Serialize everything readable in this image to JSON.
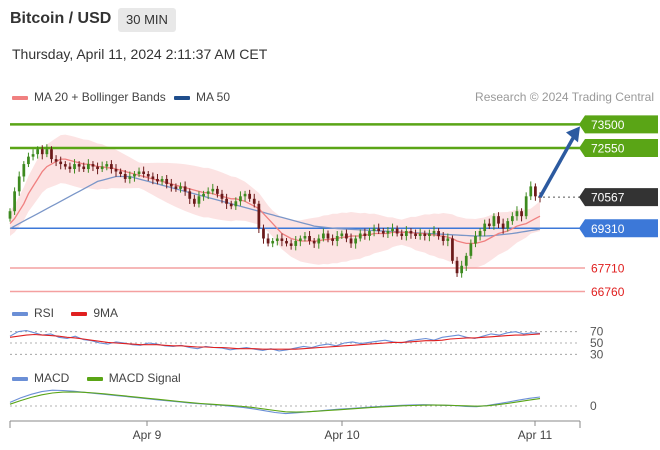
{
  "header": {
    "title": "Bitcoin / USD",
    "timeframe": "30 MIN"
  },
  "datetime": "Thursday, April 11, 2024 2:11:37 AM CET",
  "legend": {
    "ma_bb": "MA 20 + Bollinger Bands",
    "ma50": "MA 50",
    "research": "Research © 2024 Trading Central",
    "colors": {
      "ma20": "#f08080",
      "bollinger_fill": "#fbd9d9",
      "ma50": "#1f4e8c",
      "resistance": "#5aa516",
      "support": "#f4a0a0",
      "pivot": "#3c78d8",
      "current": "#333333"
    }
  },
  "rsi_panel": {
    "rsi_label": "RSI",
    "ma_label": "9MA",
    "levels": [
      "70",
      "50",
      "30"
    ],
    "colors": {
      "rsi": "#6b8fd6",
      "ma": "#e02020"
    }
  },
  "macd_panel": {
    "macd_label": "MACD",
    "signal_label": "MACD Signal",
    "zero": "0",
    "colors": {
      "macd": "#6b8fd6",
      "signal": "#5aa516"
    }
  },
  "chart_data": [
    {
      "type": "candlestick",
      "title": "Bitcoin / USD",
      "x_ticks": [
        "Apr 9",
        "Apr 10",
        "Apr 11"
      ],
      "ylim": [
        66500,
        74000
      ],
      "levels": [
        {
          "label": "73500",
          "value": 73500,
          "kind": "resistance"
        },
        {
          "label": "72550",
          "value": 72550,
          "kind": "resistance"
        },
        {
          "label": "70567",
          "value": 70567,
          "kind": "current"
        },
        {
          "label": "69310",
          "value": 69310,
          "kind": "pivot"
        },
        {
          "label": "67710",
          "value": 67710,
          "kind": "support"
        },
        {
          "label": "66760",
          "value": 66760,
          "kind": "support"
        }
      ],
      "close": [
        70000,
        70800,
        71400,
        71900,
        72200,
        72300,
        72500,
        72300,
        72500,
        72100,
        72000,
        71900,
        71800,
        71700,
        71900,
        71800,
        71700,
        71900,
        71800,
        71700,
        71800,
        71900,
        71700,
        71600,
        71500,
        71300,
        71400,
        71500,
        71600,
        71500,
        71400,
        71300,
        71200,
        71300,
        71100,
        71000,
        70900,
        71000,
        70800,
        70500,
        70300,
        70600,
        70700,
        70800,
        70900,
        70700,
        70500,
        70300,
        70200,
        70400,
        70600,
        70700,
        70500,
        70300,
        69300,
        68900,
        68700,
        68800,
        68900,
        68800,
        68700,
        68600,
        68800,
        68900,
        69000,
        68800,
        68700,
        68900,
        69100,
        68900,
        68800,
        69000,
        69100,
        68900,
        68700,
        68900,
        69100,
        69000,
        69200,
        69300,
        69200,
        69100,
        69200,
        69300,
        69100,
        69000,
        69200,
        69100,
        69000,
        69100,
        69000,
        69100,
        69200,
        69000,
        68800,
        68900,
        68000,
        67500,
        67800,
        68200,
        68700,
        69000,
        69200,
        69500,
        69400,
        69800,
        69500,
        69300,
        69600,
        69800,
        70000,
        69800,
        70600,
        71000,
        70600,
        70567
      ],
      "ma20_approx": [
        69500,
        69700,
        70000,
        70300,
        70700,
        71000,
        71300,
        71600,
        71800,
        71900,
        72000,
        72100,
        72100,
        72050,
        72000,
        71950,
        71900,
        71900,
        71850,
        71800,
        71800,
        71750,
        71750,
        71700,
        71650,
        71600,
        71550,
        71500,
        71450,
        71400,
        71350,
        71300,
        71250,
        71200,
        71150,
        71100,
        71050,
        71000,
        70950,
        70900,
        70850,
        70800,
        70750,
        70750,
        70700,
        70650,
        70600,
        70550,
        70500,
        70500,
        70450,
        70400,
        70300,
        70200,
        70100,
        69900,
        69700,
        69500,
        69300,
        69100,
        69000,
        68900,
        68850,
        68800,
        68800,
        68800,
        68800,
        68800,
        68850,
        68850,
        68900,
        68900,
        68950,
        68950,
        69000,
        69000,
        69000,
        69050,
        69050,
        69100,
        69100,
        69100,
        69100,
        69150,
        69150,
        69150,
        69150,
        69150,
        69100,
        69100,
        69100,
        69050,
        69050,
        69000,
        69000,
        68950,
        68900,
        68800,
        68750,
        68700,
        68700,
        68700,
        68750,
        68800,
        68900,
        69000,
        69100,
        69150,
        69200,
        69300,
        69400,
        69450,
        69500,
        69600,
        69700,
        69800
      ],
      "ma50_approx": [
        69300,
        69400,
        69500,
        69600,
        69700,
        69800,
        69900,
        70000,
        70100,
        70200,
        70300,
        70400,
        70500,
        70600,
        70700,
        70800,
        70900,
        71000,
        71100,
        71200,
        71250,
        71300,
        71350,
        71400,
        71400,
        71400,
        71400,
        71350,
        71300,
        71250,
        71200,
        71150,
        71100,
        71050,
        71000,
        70950,
        70900,
        70850,
        70800,
        70750,
        70700,
        70650,
        70600,
        70550,
        70500,
        70450,
        70400,
        70350,
        70300,
        70250,
        70200,
        70150,
        70100,
        70050,
        70000,
        69950,
        69900,
        69850,
        69800,
        69750,
        69700,
        69650,
        69600,
        69550,
        69500,
        69450,
        69400,
        69380,
        69360,
        69340,
        69320,
        69300,
        69290,
        69280,
        69270,
        69260,
        69250,
        69240,
        69230,
        69220,
        69210,
        69200,
        69190,
        69180,
        69170,
        69160,
        69150,
        69140,
        69130,
        69120,
        69110,
        69100,
        69090,
        69080,
        69070,
        69060,
        69050,
        69040,
        69030,
        69020,
        69010,
        69000,
        69000,
        69000,
        69010,
        69020,
        69040,
        69060,
        69080,
        69100,
        69130,
        69160,
        69190,
        69220,
        69250,
        69280
      ],
      "annotation": "arrow from 70567 toward 73500"
    },
    {
      "type": "line",
      "title": "RSI",
      "series": [
        {
          "name": "RSI",
          "values": [
            62,
            70,
            72,
            68,
            64,
            66,
            60,
            58,
            62,
            56,
            54,
            50,
            48,
            52,
            50,
            47,
            46,
            50,
            48,
            45,
            44,
            46,
            42,
            40,
            44,
            42,
            41,
            38,
            40,
            42,
            39,
            37,
            40,
            36,
            38,
            41,
            44,
            42,
            46,
            48,
            45,
            50,
            52,
            49,
            51,
            53,
            55,
            52,
            50,
            54,
            56,
            58,
            55,
            60,
            62,
            64,
            60,
            58,
            62,
            66,
            64,
            68,
            70,
            66,
            68,
            67
          ]
        },
        {
          "name": "9MA",
          "values": [
            60,
            62,
            64,
            65,
            64,
            63,
            62,
            60,
            59,
            57,
            55,
            53,
            51,
            50,
            49,
            48,
            47,
            47,
            47,
            46,
            45,
            45,
            44,
            43,
            43,
            42,
            42,
            41,
            40,
            40,
            40,
            39,
            39,
            39,
            39,
            39,
            40,
            41,
            42,
            43,
            44,
            45,
            46,
            47,
            48,
            49,
            50,
            51,
            51,
            52,
            53,
            54,
            54,
            55,
            57,
            58,
            59,
            59,
            60,
            61,
            62,
            63,
            64,
            64,
            65,
            66
          ]
        }
      ],
      "levels": [
        70,
        50,
        30
      ],
      "ylim": [
        20,
        80
      ]
    },
    {
      "type": "line",
      "title": "MACD",
      "series": [
        {
          "name": "MACD",
          "values": [
            200,
            450,
            650,
            800,
            880,
            860,
            820,
            760,
            700,
            640,
            580,
            520,
            460,
            400,
            340,
            280,
            220,
            160,
            120,
            80,
            40,
            -20,
            -80,
            -160,
            -260,
            -360,
            -420,
            -380,
            -330,
            -280,
            -230,
            -180,
            -140,
            -100,
            -60,
            -20,
            10,
            40,
            60,
            70,
            60,
            40,
            20,
            -20,
            -40,
            20,
            120,
            220,
            330,
            430,
            500
          ]
        },
        {
          "name": "MACD Signal",
          "values": [
            100,
            300,
            480,
            620,
            720,
            770,
            780,
            760,
            720,
            670,
            610,
            550,
            490,
            430,
            370,
            310,
            250,
            190,
            140,
            100,
            60,
            20,
            -30,
            -90,
            -170,
            -250,
            -320,
            -340,
            -320,
            -290,
            -250,
            -210,
            -170,
            -130,
            -90,
            -50,
            -20,
            10,
            30,
            45,
            50,
            45,
            30,
            10,
            -10,
            10,
            70,
            150,
            240,
            330,
            410
          ]
        }
      ],
      "zero": 0,
      "ylim": [
        -500,
        1000
      ]
    }
  ]
}
